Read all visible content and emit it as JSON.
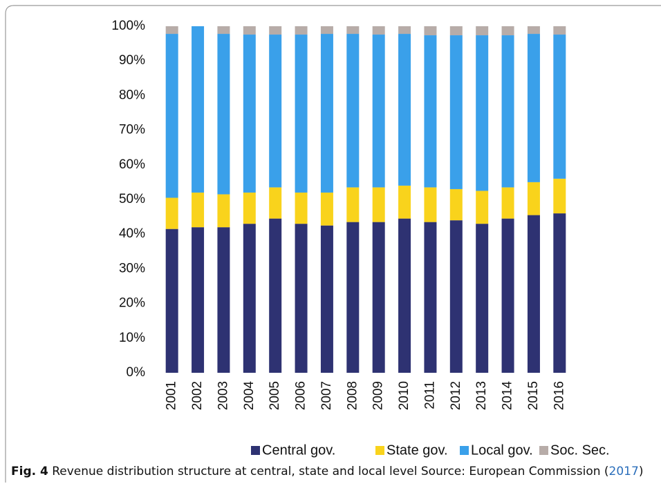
{
  "chart_data": {
    "type": "stacked-bar",
    "categories": [
      "2001",
      "2002",
      "2003",
      "2004",
      "2005",
      "2006",
      "2007",
      "2008",
      "2009",
      "2010",
      "2011",
      "2012",
      "2013",
      "2014",
      "2015",
      "2016"
    ],
    "series": [
      {
        "name": "Central gov.",
        "color": "#2e3272",
        "values": [
          41.5,
          42,
          42,
          43,
          44.5,
          43,
          42.5,
          43.5,
          43.5,
          44.5,
          43.5,
          44,
          43,
          44.5,
          45.5,
          46
        ]
      },
      {
        "name": "State gov.",
        "color": "#f9d31c",
        "values": [
          9,
          10,
          9.5,
          9,
          9,
          9,
          9.5,
          10,
          10,
          9.5,
          10,
          9,
          9.5,
          9,
          9.5,
          10
        ]
      },
      {
        "name": "Local gov.",
        "color": "#3aa0ea",
        "values": [
          47.3,
          48,
          46.3,
          45.6,
          44.1,
          45.6,
          45.8,
          44.3,
          44.1,
          43.8,
          43.9,
          44.4,
          44.9,
          43.9,
          42.8,
          41.6
        ]
      },
      {
        "name": "Soc. Sec.",
        "color": "#b7aca8",
        "values": [
          2.2,
          0,
          2.2,
          2.4,
          2.4,
          2.4,
          2.2,
          2.2,
          2.4,
          2.2,
          2.6,
          2.6,
          2.6,
          2.6,
          2.2,
          2.4
        ]
      }
    ],
    "ylim": [
      0,
      100
    ],
    "yticks": [
      {
        "value": 0,
        "label": "0%"
      },
      {
        "value": 10,
        "label": "10%"
      },
      {
        "value": 20,
        "label": "20%"
      },
      {
        "value": 30,
        "label": "30%"
      },
      {
        "value": 40,
        "label": "40%"
      },
      {
        "value": 50,
        "label": "50%"
      },
      {
        "value": 60,
        "label": "60%"
      },
      {
        "value": 70,
        "label": "70%"
      },
      {
        "value": 80,
        "label": "80%"
      },
      {
        "value": 90,
        "label": "90%"
      },
      {
        "value": 100,
        "label": "100%"
      }
    ],
    "legend": "bottom"
  },
  "caption": {
    "label": "Fig. 4",
    "text": " Revenue distribution structure at central, state and local level Source: European Commission (",
    "ref": "2017",
    "end": ")"
  }
}
